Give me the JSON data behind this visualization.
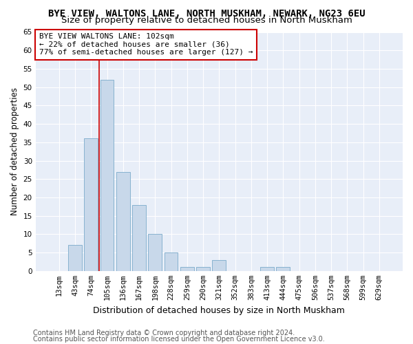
{
  "title": "BYE VIEW, WALTONS LANE, NORTH MUSKHAM, NEWARK, NG23 6EU",
  "subtitle": "Size of property relative to detached houses in North Muskham",
  "xlabel": "Distribution of detached houses by size in North Muskham",
  "ylabel": "Number of detached properties",
  "bar_color": "#c8d8ea",
  "bar_edge_color": "#7aaaca",
  "categories": [
    "13sqm",
    "43sqm",
    "74sqm",
    "105sqm",
    "136sqm",
    "167sqm",
    "198sqm",
    "228sqm",
    "259sqm",
    "290sqm",
    "321sqm",
    "352sqm",
    "383sqm",
    "413sqm",
    "444sqm",
    "475sqm",
    "506sqm",
    "537sqm",
    "568sqm",
    "599sqm",
    "629sqm"
  ],
  "values": [
    0,
    7,
    36,
    52,
    27,
    18,
    10,
    5,
    1,
    1,
    3,
    0,
    0,
    1,
    1,
    0,
    0,
    0,
    0,
    0,
    0
  ],
  "ylim": [
    0,
    65
  ],
  "yticks": [
    0,
    5,
    10,
    15,
    20,
    25,
    30,
    35,
    40,
    45,
    50,
    55,
    60,
    65
  ],
  "vline_color": "#cc0000",
  "annotation_text": "BYE VIEW WALTONS LANE: 102sqm\n← 22% of detached houses are smaller (36)\n77% of semi-detached houses are larger (127) →",
  "annotation_box_color": "#ffffff",
  "annotation_box_edge": "#cc0000",
  "footnote1": "Contains HM Land Registry data © Crown copyright and database right 2024.",
  "footnote2": "Contains public sector information licensed under the Open Government Licence v3.0.",
  "bg_color": "#ffffff",
  "plot_bg_color": "#e8eef8",
  "title_fontsize": 10,
  "subtitle_fontsize": 9.5,
  "tick_fontsize": 7.5,
  "ylabel_fontsize": 8.5,
  "xlabel_fontsize": 9,
  "footnote_fontsize": 7,
  "annotation_fontsize": 8
}
